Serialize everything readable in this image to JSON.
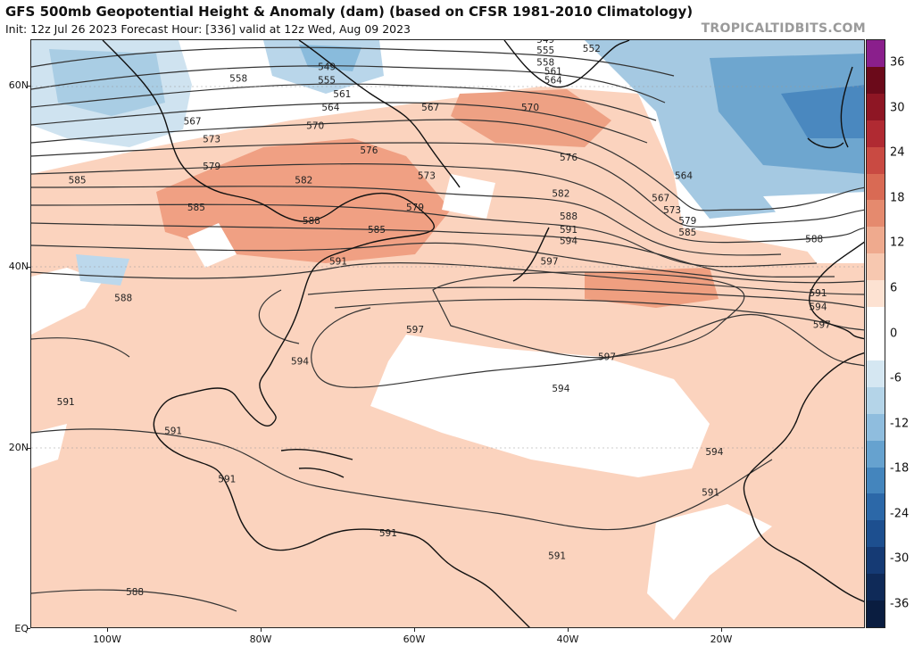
{
  "header": {
    "title": "GFS 500mb Geopotential Height & Anomaly (dam) (based on CFSR 1981-2010 Climatology)",
    "subtitle": "Init: 12z Jul 26 2023   Forecast Hour: [336]   valid at 12z Wed, Aug 09 2023",
    "credit": "TROPICALTIDBITS.COM"
  },
  "axes": {
    "lat_labels": [
      "60N",
      "40N",
      "20N",
      "EQ"
    ],
    "lon_labels": [
      "100W",
      "80W",
      "60W",
      "40W",
      "20W"
    ]
  },
  "colorbar": {
    "labels": [
      "36",
      "30",
      "24",
      "18",
      "12",
      "6",
      "0",
      "-6",
      "-12",
      "-18",
      "-24",
      "-30",
      "-36"
    ],
    "colors": [
      "#8a1f8c",
      "#6b0a1a",
      "#8e1624",
      "#b02a32",
      "#c94a42",
      "#d96a54",
      "#e58a6e",
      "#efaa8e",
      "#f7c8b0",
      "#fde2d2",
      "#ffffff",
      "#ffffff",
      "#d5e7f2",
      "#b4d4e8",
      "#8fbdde",
      "#66a2cf",
      "#4485bd",
      "#2c68a8",
      "#1d4f8f",
      "#153a74",
      "#0f2a58",
      "#0a1d40"
    ]
  },
  "contours": {
    "labels": [
      "549",
      "540",
      "552",
      "555",
      "558",
      "561",
      "564",
      "567",
      "570",
      "573",
      "576",
      "579",
      "582",
      "585",
      "588",
      "591",
      "594",
      "597"
    ],
    "items": [
      {
        "label": "549",
        "lon": -71.5,
        "lat": 61.5
      },
      {
        "label": "555",
        "lon": -71.5,
        "lat": 60.0
      },
      {
        "label": "558",
        "lon": -83.0,
        "lat": 60.2
      },
      {
        "label": "561",
        "lon": -69.5,
        "lat": 58.5
      },
      {
        "label": "564",
        "lon": -71.0,
        "lat": 57.0
      },
      {
        "label": "567",
        "lon": -89.0,
        "lat": 55.5
      },
      {
        "label": "570",
        "lon": -73.0,
        "lat": 55.0
      },
      {
        "label": "573",
        "lon": -86.5,
        "lat": 53.5
      },
      {
        "label": "576",
        "lon": -66.0,
        "lat": 52.3
      },
      {
        "label": "579",
        "lon": -86.5,
        "lat": 50.5
      },
      {
        "label": "582",
        "lon": -74.5,
        "lat": 49.0
      },
      {
        "label": "585",
        "lon": -104.0,
        "lat": 49.0
      },
      {
        "label": "585",
        "lon": -88.5,
        "lat": 46.0
      },
      {
        "label": "588",
        "lon": -73.5,
        "lat": 44.5
      },
      {
        "label": "591",
        "lon": -70.0,
        "lat": 40.0
      },
      {
        "label": "549",
        "lon": -43.0,
        "lat": 64.5
      },
      {
        "label": "540",
        "lon": -41.0,
        "lat": 64.8
      },
      {
        "label": "552",
        "lon": -37.0,
        "lat": 63.5
      },
      {
        "label": "555",
        "lon": -43.0,
        "lat": 63.3
      },
      {
        "label": "558",
        "lon": -43.0,
        "lat": 62.0
      },
      {
        "label": "561",
        "lon": -42.0,
        "lat": 61.0
      },
      {
        "label": "564",
        "lon": -42.0,
        "lat": 60.0
      },
      {
        "label": "567",
        "lon": -58.0,
        "lat": 57.0
      },
      {
        "label": "570",
        "lon": -45.0,
        "lat": 57.0
      },
      {
        "label": "573",
        "lon": -58.5,
        "lat": 49.5
      },
      {
        "label": "576",
        "lon": -40.0,
        "lat": 51.5
      },
      {
        "label": "579",
        "lon": -60.0,
        "lat": 46.0
      },
      {
        "label": "582",
        "lon": -41.0,
        "lat": 47.5
      },
      {
        "label": "585",
        "lon": -65.0,
        "lat": 43.5
      },
      {
        "label": "588",
        "lon": -40.0,
        "lat": 45.0
      },
      {
        "label": "591",
        "lon": -40.0,
        "lat": 43.5
      },
      {
        "label": "594",
        "lon": -40.0,
        "lat": 42.3
      },
      {
        "label": "597",
        "lon": -42.5,
        "lat": 40.0
      },
      {
        "label": "564",
        "lon": -25.0,
        "lat": 49.5
      },
      {
        "label": "567",
        "lon": -28.0,
        "lat": 47.0
      },
      {
        "label": "573",
        "lon": -26.5,
        "lat": 45.7
      },
      {
        "label": "579",
        "lon": -24.5,
        "lat": 44.5
      },
      {
        "label": "585",
        "lon": -24.5,
        "lat": 43.2
      },
      {
        "label": "588",
        "lon": -8.0,
        "lat": 42.5
      },
      {
        "label": "591",
        "lon": -7.5,
        "lat": 36.5
      },
      {
        "label": "594",
        "lon": -7.5,
        "lat": 35.0
      },
      {
        "label": "597",
        "lon": -7.0,
        "lat": 33.0
      },
      {
        "label": "597",
        "lon": -60.0,
        "lat": 32.5
      },
      {
        "label": "597",
        "lon": -35.0,
        "lat": 29.5
      },
      {
        "label": "594",
        "lon": -75.0,
        "lat": 29.0
      },
      {
        "label": "594",
        "lon": -41.0,
        "lat": 26.0
      },
      {
        "label": "594",
        "lon": -21.0,
        "lat": 19.0
      },
      {
        "label": "591",
        "lon": -105.5,
        "lat": 24.5
      },
      {
        "label": "591",
        "lon": -91.5,
        "lat": 21.3
      },
      {
        "label": "591",
        "lon": -84.5,
        "lat": 16.0
      },
      {
        "label": "591",
        "lon": -63.5,
        "lat": 10.0
      },
      {
        "label": "591",
        "lon": -41.5,
        "lat": 7.5
      },
      {
        "label": "591",
        "lon": -21.5,
        "lat": 14.5
      },
      {
        "label": "588",
        "lon": -98.0,
        "lat": 36.0
      },
      {
        "label": "588",
        "lon": -96.5,
        "lat": 3.5
      }
    ]
  }
}
